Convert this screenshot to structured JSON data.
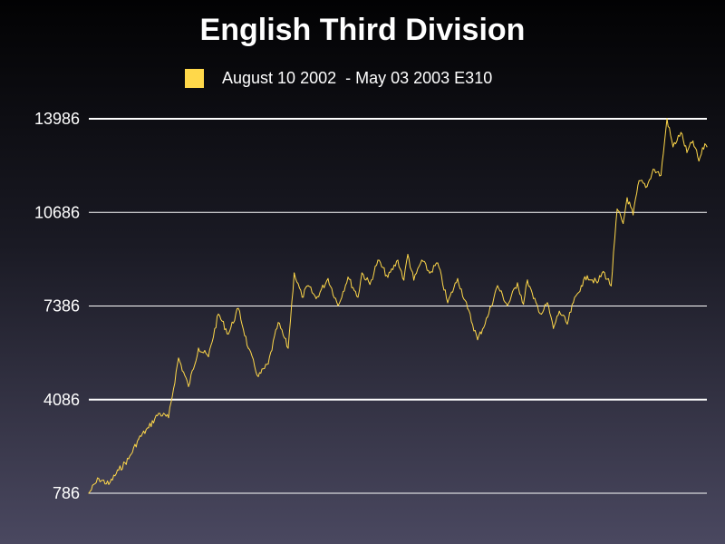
{
  "chart_data": {
    "type": "line",
    "title": "English Third Division",
    "xlabel": "",
    "ylabel": "",
    "ylim": [
      786,
      13986
    ],
    "yticks": [
      "13986",
      "10686",
      "7386",
      "4086",
      "786"
    ],
    "ytick_values": [
      13986,
      10686,
      7386,
      4086,
      786
    ],
    "grid": true,
    "legend_placement": "top-center",
    "series": [
      {
        "name": "August 10 2002  - May 03 2003 E310",
        "color": "#ffd84a",
        "x": [
          0,
          5,
          10,
          15,
          20,
          25,
          30,
          35,
          40,
          45,
          50,
          55,
          60,
          65,
          70,
          75,
          80,
          85,
          90,
          95,
          100,
          103,
          107,
          110,
          114,
          120,
          125,
          130,
          135,
          137,
          141,
          145,
          150,
          155,
          158,
          160,
          163,
          167,
          171,
          175,
          180,
          185,
          190,
          195,
          200,
          205,
          210,
          215,
          218,
          220,
          223,
          227,
          230,
          233,
          236,
          240,
          243,
          247,
          250,
          255,
          258,
          262,
          265,
          268,
          270,
          273,
          276,
          280,
          283,
          287,
          290,
          293,
          297,
          300,
          303,
          306,
          309,
          310
        ],
        "values": [
          786,
          1300,
          1100,
          1600,
          2000,
          2700,
          3100,
          3600,
          3450,
          5550,
          4550,
          5900,
          5600,
          7100,
          6400,
          7300,
          5900,
          4900,
          5350,
          6800,
          5900,
          8550,
          7700,
          8100,
          7650,
          8350,
          7400,
          8400,
          7700,
          8550,
          8150,
          9000,
          8400,
          9000,
          8300,
          9200,
          8300,
          9000,
          8550,
          8900,
          7500,
          8350,
          7300,
          6200,
          7000,
          8100,
          7400,
          8200,
          7450,
          8300,
          7650,
          7100,
          7500,
          6600,
          7200,
          6750,
          7500,
          8100,
          8450,
          8200,
          8600,
          8100,
          10800,
          10300,
          11200,
          10600,
          11800,
          11600,
          12200,
          12000,
          13986,
          13000,
          13500,
          12800,
          13200,
          12500,
          13100,
          13000
        ]
      }
    ]
  }
}
